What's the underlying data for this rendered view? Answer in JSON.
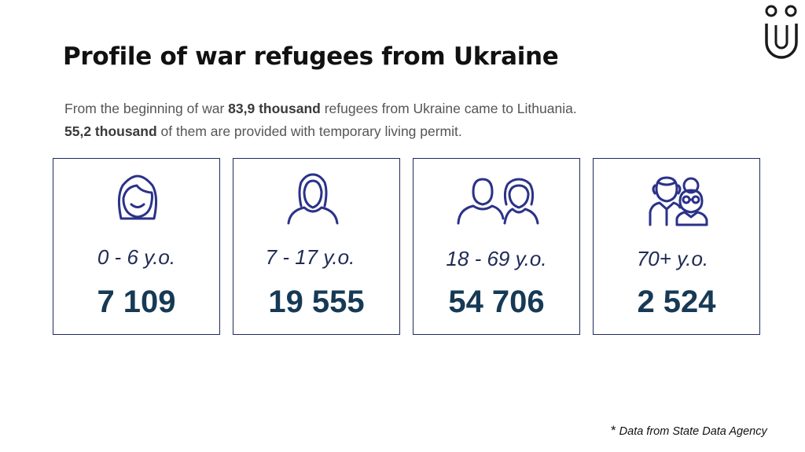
{
  "title": "Profile of war refugees from Ukraine",
  "intro": {
    "line1_prefix": "From the beginning of war ",
    "line1_bold": "83,9 thousand",
    "line1_suffix": " refugees from Ukraine came to Lithuania.",
    "line2_bold": "55,2 thousand",
    "line2_suffix": " of them are provided with temporary living permit."
  },
  "groups": [
    {
      "age": "0 - 6 y.o.",
      "count": "7 109",
      "icon": "girl-face-icon"
    },
    {
      "age": "7 - 17 y.o.",
      "count": "19 555",
      "icon": "young-woman-icon"
    },
    {
      "age": "18 - 69 y.o.",
      "count": "54 706",
      "icon": "adult-couple-icon"
    },
    {
      "age": "70+ y.o.",
      "count": "2 524",
      "icon": "elderly-couple-icon"
    }
  ],
  "source": {
    "star": "*",
    "text": " Data from State Data Agency"
  },
  "colors": {
    "navy": "#1f2a60",
    "number": "#163a55",
    "icon": "#2b3288"
  },
  "logo": "stylized-u-logo-icon"
}
